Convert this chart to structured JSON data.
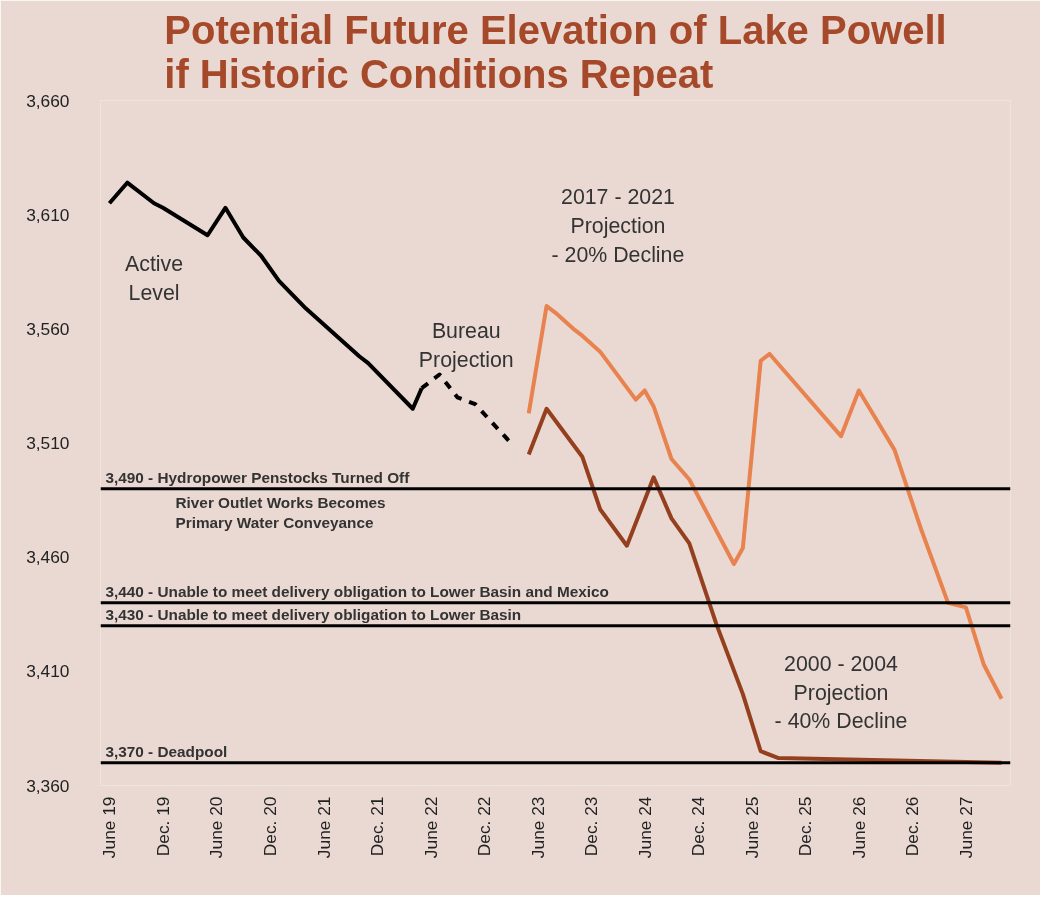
{
  "chart_data": {
    "type": "line",
    "title": "Potential Future Elevation of Lake Powell\nif Historic Conditions Repeat",
    "xlim": [
      "2019-05",
      "2027-11"
    ],
    "ylim": [
      3360,
      3660
    ],
    "yticks": [
      {
        "value": 3360,
        "label": "3,360"
      },
      {
        "value": 3410,
        "label": "3,410"
      },
      {
        "value": 3460,
        "label": "3,460"
      },
      {
        "value": 3510,
        "label": "3,510"
      },
      {
        "value": 3560,
        "label": "3,560"
      },
      {
        "value": 3610,
        "label": "3,610"
      },
      {
        "value": 3660,
        "label": "3,660"
      }
    ],
    "xticks": [
      {
        "value": "2019-06",
        "label": "June 19"
      },
      {
        "value": "2019-12",
        "label": "Dec. 19"
      },
      {
        "value": "2020-06",
        "label": "June 20"
      },
      {
        "value": "2020-12",
        "label": "Dec. 20"
      },
      {
        "value": "2021-06",
        "label": "June 21"
      },
      {
        "value": "2021-12",
        "label": "Dec. 21"
      },
      {
        "value": "2022-06",
        "label": "June 22"
      },
      {
        "value": "2022-12",
        "label": "Dec. 22"
      },
      {
        "value": "2023-06",
        "label": "June 23"
      },
      {
        "value": "2023-12",
        "label": "Dec. 23"
      },
      {
        "value": "2024-06",
        "label": "June 24"
      },
      {
        "value": "2024-12",
        "label": "Dec. 24"
      },
      {
        "value": "2025-06",
        "label": "June 25"
      },
      {
        "value": "2025-12",
        "label": "Dec. 25"
      },
      {
        "value": "2026-06",
        "label": "June 26"
      },
      {
        "value": "2026-12",
        "label": "Dec. 26"
      },
      {
        "value": "2027-06",
        "label": "June 27"
      }
    ],
    "grid": false,
    "line_style": "solid",
    "series": [
      {
        "name": "Active\nLevel",
        "color": "#000000",
        "x": [
          "2019-06",
          "2019-08",
          "2019-11",
          "2019-12",
          "2020-05",
          "2020-07",
          "2020-09",
          "2020-11",
          "2021-01",
          "2021-04",
          "2021-06",
          "2021-10",
          "2021-11",
          "2022-04",
          "2022-05"
        ],
        "values": [
          3615,
          3624,
          3615,
          3613,
          3601,
          3613,
          3600,
          3592,
          3581,
          3569,
          3562,
          3548,
          3545,
          3525,
          3534
        ]
      },
      {
        "name": "Bureau\nProjection",
        "color": "#000000",
        "line_style": "dashed",
        "x": [
          "2022-05",
          "2022-07",
          "2022-09",
          "2022-11",
          "2023-03"
        ],
        "values": [
          3534,
          3540,
          3530,
          3527,
          3510
        ]
      },
      {
        "name": "2017 - 2021\nProjection\n- 20% Decline",
        "color": "#e8834f",
        "x": [
          "2023-05",
          "2023-07",
          "2023-08",
          "2023-10",
          "2023-11",
          "2024-01",
          "2024-05",
          "2024-06",
          "2024-07",
          "2024-09",
          "2024-11",
          "2025-04",
          "2025-05",
          "2025-07",
          "2025-08",
          "2026-04",
          "2026-06",
          "2026-10",
          "2027-01",
          "2027-04",
          "2027-06",
          "2027-08",
          "2027-10"
        ],
        "values": [
          3523,
          3570,
          3567,
          3560,
          3557,
          3550,
          3529,
          3533,
          3526,
          3503,
          3494,
          3457,
          3464,
          3546,
          3549,
          3513,
          3533,
          3507,
          3472,
          3440,
          3438,
          3413,
          3398
        ]
      },
      {
        "name": "2000 - 2004\nProjection\n- 40% Decline",
        "color": "#94401f",
        "x": [
          "2023-05",
          "2023-07",
          "2023-11",
          "2024-01",
          "2024-04",
          "2024-07",
          "2024-09",
          "2024-11",
          "2025-02",
          "2025-05",
          "2025-07",
          "2025-09",
          "2027-10"
        ],
        "values": [
          3505,
          3525,
          3504,
          3481,
          3465,
          3495,
          3477,
          3466,
          3431,
          3400,
          3375,
          3372,
          3370
        ]
      }
    ],
    "ref_lines": [
      {
        "axis": "y",
        "value": 3490,
        "color": "#000000",
        "label": "3,490 - Hydropower Penstocks Turned Off\nRiver Outlet Works Becomes\nPrimary Water Conveyance"
      },
      {
        "axis": "y",
        "value": 3440,
        "color": "#000000",
        "label": "3,440 - Unable to meet delivery obligation to Lower Basin and Mexico"
      },
      {
        "axis": "y",
        "value": 3430,
        "color": "#000000",
        "label": "3,430 - Unable to meet delivery obligation to Lower Basin"
      },
      {
        "axis": "y",
        "value": 3370,
        "color": "#000000",
        "label": "3,370 - Deadpool"
      }
    ]
  }
}
